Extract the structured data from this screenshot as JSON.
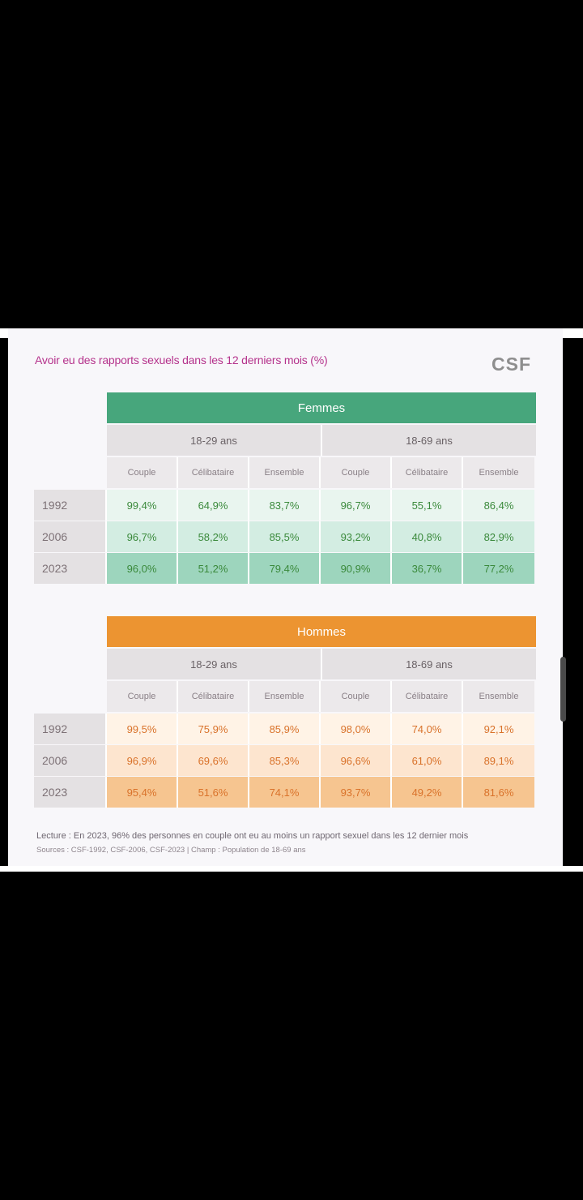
{
  "chart_data": {
    "type": "table",
    "title": "Avoir eu des rapports sexuels dans les 12 derniers mois (%)",
    "logo": "CSF",
    "tables": [
      {
        "name": "Femmes",
        "color": "#47a67c",
        "age_groups": [
          "18-29 ans",
          "18-69 ans"
        ],
        "subcolumns": [
          "Couple",
          "Célibataire",
          "Ensemble"
        ],
        "value_color": "#3b8a3c",
        "row_colors": [
          "#e9f5ef",
          "#d3ede2",
          "#9dd5bd"
        ],
        "rows": [
          {
            "year": "1992",
            "values": [
              "99,4%",
              "64,9%",
              "83,7%",
              "96,7%",
              "55,1%",
              "86,4%"
            ]
          },
          {
            "year": "2006",
            "values": [
              "96,7%",
              "58,2%",
              "85,5%",
              "93,2%",
              "40,8%",
              "82,9%"
            ]
          },
          {
            "year": "2023",
            "values": [
              "96,0%",
              "51,2%",
              "79,4%",
              "90,9%",
              "36,7%",
              "77,2%"
            ]
          }
        ]
      },
      {
        "name": "Hommes",
        "color": "#ec9431",
        "age_groups": [
          "18-29 ans",
          "18-69 ans"
        ],
        "subcolumns": [
          "Couple",
          "Célibataire",
          "Ensemble"
        ],
        "value_color": "#d9722a",
        "row_colors": [
          "#fff3e6",
          "#fde5cf",
          "#f6c590"
        ],
        "rows": [
          {
            "year": "1992",
            "values": [
              "99,5%",
              "75,9%",
              "85,9%",
              "98,0%",
              "74,0%",
              "92,1%"
            ]
          },
          {
            "year": "2006",
            "values": [
              "96,9%",
              "69,6%",
              "85,3%",
              "96,6%",
              "61,0%",
              "89,1%"
            ]
          },
          {
            "year": "2023",
            "values": [
              "95,4%",
              "51,6%",
              "74,1%",
              "93,7%",
              "49,2%",
              "81,6%"
            ]
          }
        ]
      }
    ],
    "lecture": "Lecture : En 2023, 96% des personnes en couple ont eu au moins un rapport sexuel dans les 12 dernier mois",
    "sources": "Sources : CSF-1992, CSF-2006, CSF-2023 | Champ : Population de 18-69 ans"
  }
}
